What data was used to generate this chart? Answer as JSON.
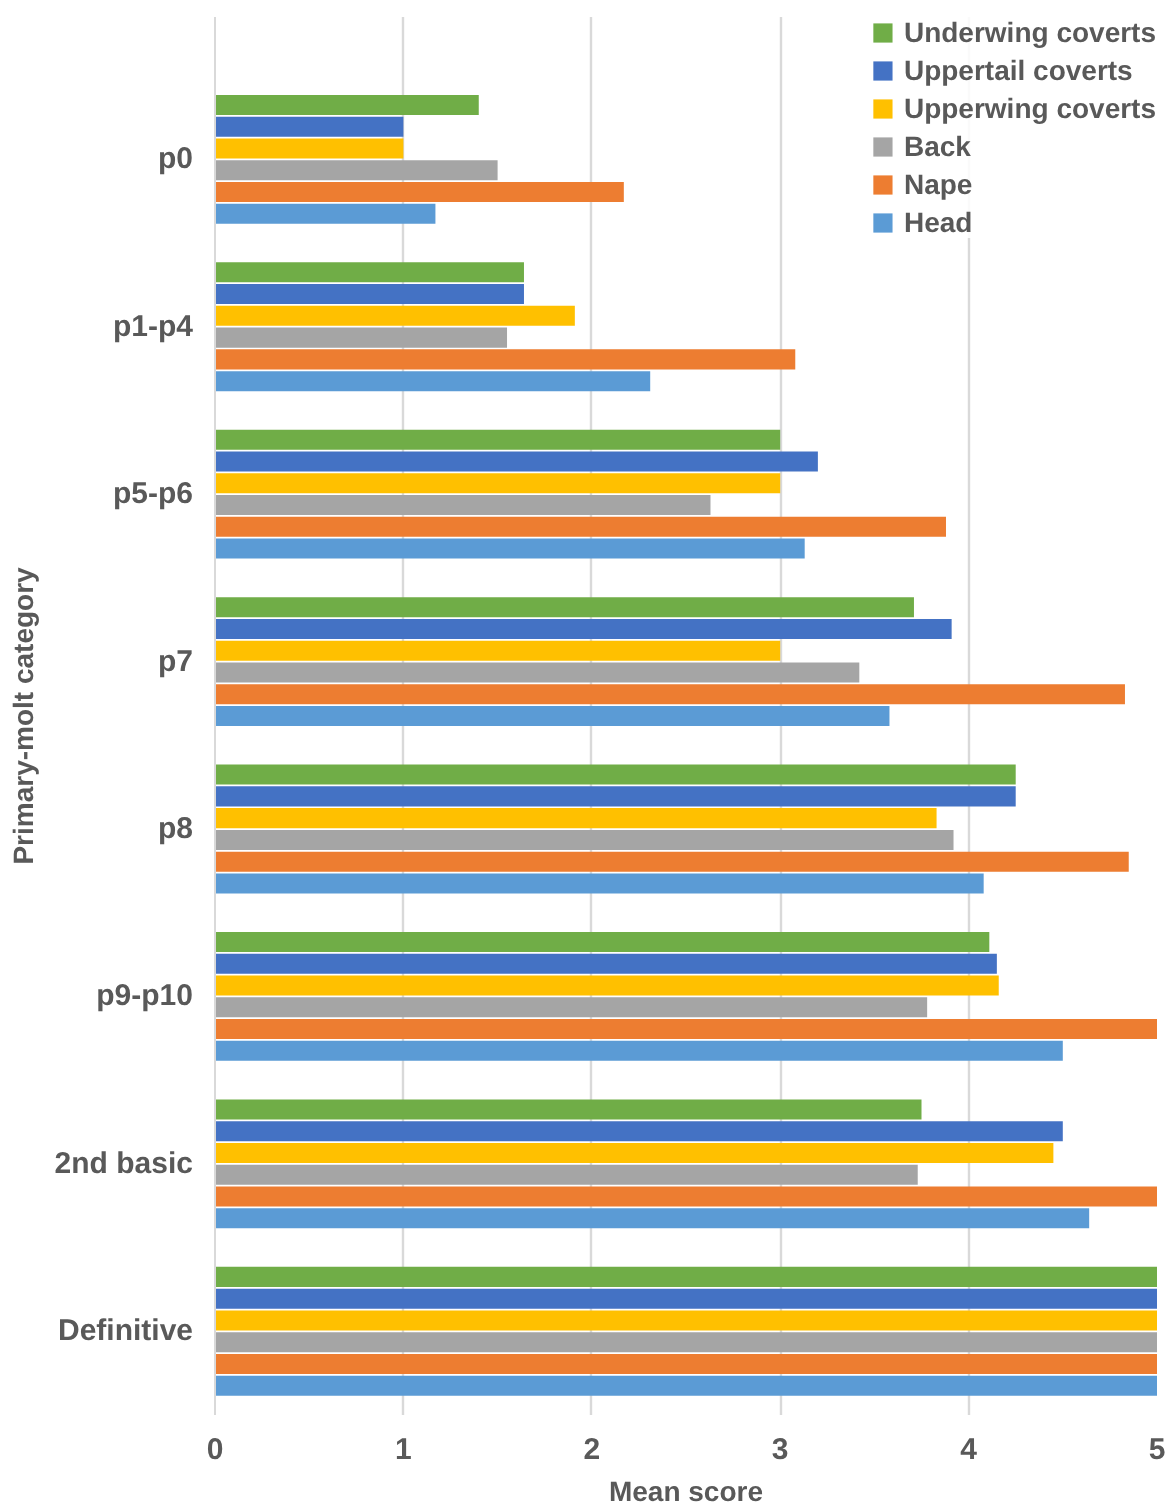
{
  "chart_data": {
    "type": "bar",
    "orientation": "horizontal",
    "xlabel": "Mean score",
    "ylabel": "Primary-molt category",
    "categories": [
      "p0",
      "p1-p4",
      "p5-p6",
      "p7",
      "p8",
      "p9-p10",
      "2nd basic",
      "Definitive"
    ],
    "series": [
      {
        "name": "Underwing coverts",
        "color": "#70ad47",
        "values": [
          1.4,
          1.64,
          3.0,
          3.71,
          4.25,
          4.11,
          3.75,
          5.0
        ]
      },
      {
        "name": "Uppertail coverts",
        "color": "#4472c4",
        "values": [
          1.0,
          1.64,
          3.2,
          3.91,
          4.25,
          4.15,
          4.5,
          5.0
        ]
      },
      {
        "name": "Upperwing coverts",
        "color": "#ffc000",
        "values": [
          1.0,
          1.91,
          3.0,
          3.0,
          3.83,
          4.16,
          4.45,
          5.0
        ]
      },
      {
        "name": "Back",
        "color": "#a5a5a5",
        "values": [
          1.5,
          1.55,
          2.63,
          3.42,
          3.92,
          3.78,
          3.73,
          5.0
        ]
      },
      {
        "name": "Nape",
        "color": "#ed7d31",
        "values": [
          2.17,
          3.08,
          3.88,
          4.83,
          4.85,
          5.0,
          5.0,
          5.0
        ]
      },
      {
        "name": "Head",
        "color": "#5b9bd5",
        "values": [
          1.17,
          2.31,
          3.13,
          3.58,
          4.08,
          4.5,
          4.64,
          5.0
        ]
      }
    ],
    "xlim": [
      0,
      5
    ],
    "xticks": [
      0,
      1,
      2,
      3,
      4,
      5
    ],
    "grid": "x",
    "legend": "top right"
  }
}
